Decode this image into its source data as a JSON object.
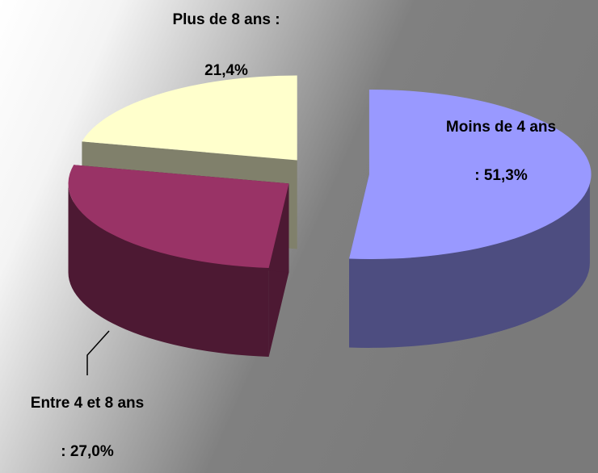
{
  "chart_data": {
    "type": "pie3d",
    "categories": [
      "Moins de 4 ans",
      "Entre 4 et 8 ans",
      "Plus de 8 ans :"
    ],
    "values": [
      51.3,
      27.0,
      21.4
    ],
    "value_labels": [
      ": 51,3%",
      ": 27,0%",
      "21,4%"
    ],
    "colors": [
      "#9999ff",
      "#993366",
      "#ffffcc"
    ],
    "side_colors": [
      "#4d4d80",
      "#4d1933",
      "#80806b"
    ]
  }
}
